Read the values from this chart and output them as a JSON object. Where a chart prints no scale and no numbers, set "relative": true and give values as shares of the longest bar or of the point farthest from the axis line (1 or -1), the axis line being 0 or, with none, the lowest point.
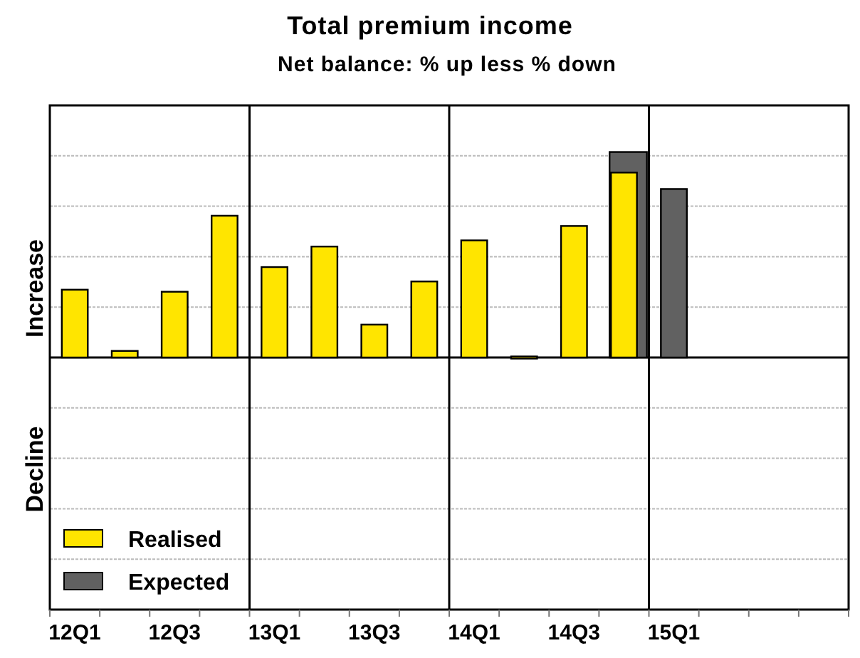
{
  "chart_data": {
    "type": "bar",
    "title": "Total premium income",
    "subtitle": "Net balance: % up less % down",
    "categories": [
      "12Q1",
      null,
      "12Q3",
      null,
      "13Q1",
      null,
      "13Q3",
      null,
      "14Q1",
      null,
      "14Q3",
      null,
      "15Q1",
      null,
      null,
      null
    ],
    "series": [
      {
        "name": "Realised",
        "color": "#ffe500",
        "values": [
          0.33,
          0.032,
          0.32,
          0.69,
          0.44,
          0.54,
          0.16,
          0.37,
          0.57,
          0.005,
          0.64,
          0.9,
          null,
          null,
          null,
          null
        ]
      },
      {
        "name": "Expected",
        "color": "#616161",
        "values": [
          null,
          null,
          null,
          null,
          null,
          null,
          null,
          null,
          null,
          null,
          null,
          1,
          0.82,
          null,
          null,
          null
        ]
      }
    ],
    "relative": true,
    "grid": true,
    "legend": "bottom left",
    "annotations": [
      "Increase",
      "Decline"
    ]
  }
}
